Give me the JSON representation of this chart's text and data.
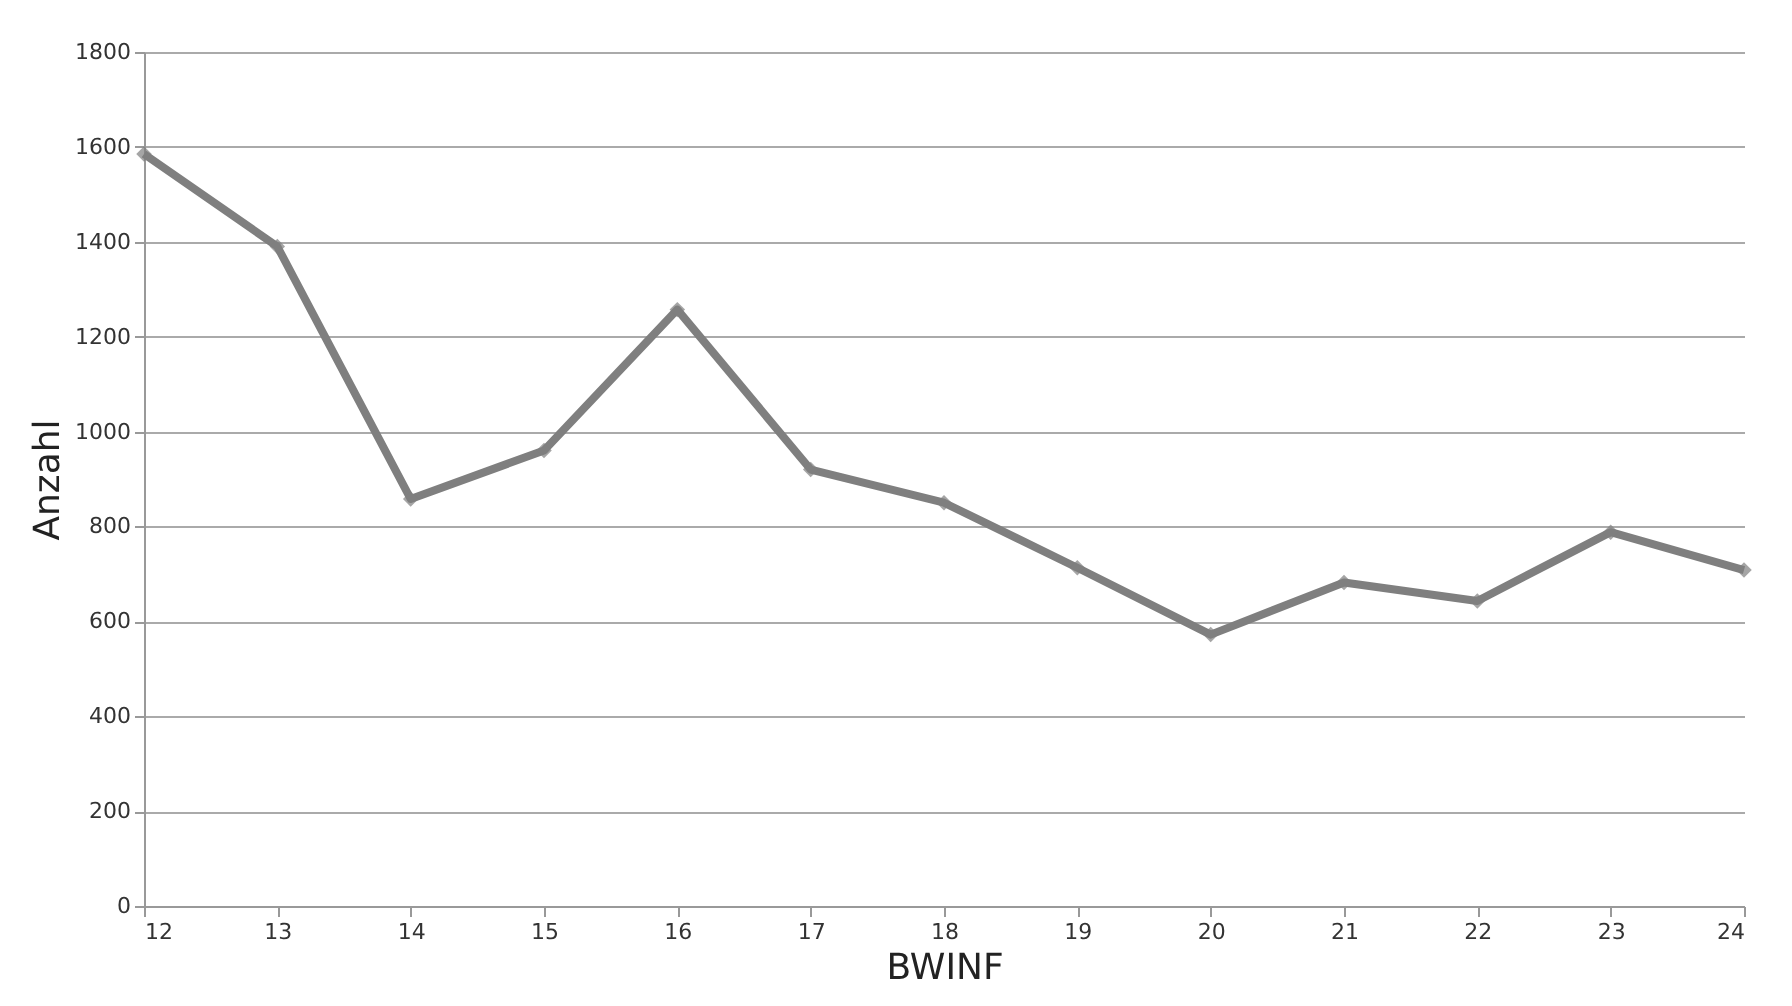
{
  "chart_data": {
    "type": "line",
    "xlabel": "BWINF",
    "ylabel": "Anzahl",
    "x": [
      12,
      13,
      14,
      15,
      16,
      17,
      18,
      19,
      20,
      21,
      22,
      23,
      24
    ],
    "series": [
      {
        "color": "#7f7f7f",
        "values": [
          1585,
          1390,
          858,
          960,
          1257,
          920,
          850,
          713,
          572,
          682,
          643,
          788,
          708
        ]
      }
    ],
    "xlim": [
      12,
      24
    ],
    "xticks": [
      12,
      13,
      14,
      15,
      16,
      17,
      18,
      19,
      20,
      21,
      22,
      23,
      24
    ],
    "ylim": [
      0,
      1800
    ],
    "yticks": [
      0,
      200,
      400,
      600,
      800,
      1000,
      1200,
      1400,
      1600,
      1800
    ],
    "grid": "y",
    "marker": "diamond",
    "line_style": "solid",
    "legend": false
  }
}
